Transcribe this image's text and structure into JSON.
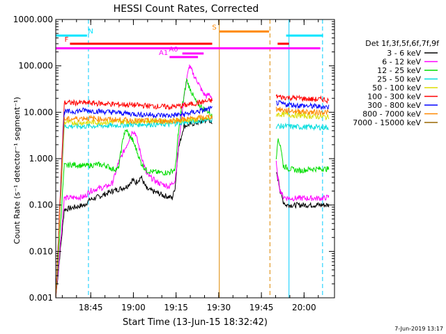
{
  "chart_data": {
    "type": "line",
    "title": "HESSI Count Rates, Corrected",
    "xlabel": "Start Time (13-Jun-15 18:32:42)",
    "ylabel": "Count Rate (s⁻¹ detector⁻¹ segment⁻¹)",
    "yscale": "log",
    "ylim": [
      0.001,
      1000
    ],
    "xlim_minutes": [
      0,
      98
    ],
    "x_unit": "minutes since 18:32:42",
    "x_ticks": [
      {
        "label": "18:45",
        "value": 12.3
      },
      {
        "label": "19:00",
        "value": 27.3
      },
      {
        "label": "19:15",
        "value": 42.3
      },
      {
        "label": "19:30",
        "value": 57.3
      },
      {
        "label": "19:45",
        "value": 72.3
      },
      {
        "label": "20:00",
        "value": 87.3
      }
    ],
    "y_ticks": [
      "1000.000",
      "100.000",
      "10.000",
      "1.000",
      "0.100",
      "0.010",
      "0.001"
    ],
    "legend_title": "Det 1f,3f,5f,6f,7f,9f",
    "legend_position": "right",
    "footer_date": "7-Jun-2019 13:17",
    "gaps_minutes": [
      [
        55.5,
        77.5
      ]
    ],
    "series": [
      {
        "name": "3 - 6 keV",
        "color": "#000000",
        "x": [
          0,
          3,
          10,
          12,
          15,
          20,
          25,
          27,
          28,
          30,
          32,
          36,
          38,
          40,
          41,
          42,
          43,
          45,
          47,
          50,
          52,
          54,
          55,
          77.5,
          78.5,
          79,
          80,
          81,
          82,
          84,
          86,
          88,
          90,
          92,
          94,
          96
        ],
        "y": [
          0.001,
          0.08,
          0.1,
          0.13,
          0.15,
          0.2,
          0.25,
          0.35,
          0.3,
          0.4,
          0.22,
          0.18,
          0.16,
          0.15,
          0.14,
          0.25,
          1.5,
          5,
          5.5,
          6,
          6.5,
          7,
          5,
          0.5,
          0.3,
          0.18,
          0.12,
          0.1,
          0.1,
          0.1,
          0.1,
          0.1,
          0.1,
          0.1,
          0.1,
          0.1
        ]
      },
      {
        "name": "6 - 12 keV",
        "color": "#ff00ff",
        "x": [
          0,
          3,
          10,
          12,
          14,
          18,
          20,
          22,
          25,
          27,
          28,
          30,
          32,
          36,
          40,
          42,
          43,
          44,
          45,
          46,
          47,
          48,
          49,
          50,
          51,
          52,
          53,
          54,
          55,
          77.5,
          78,
          79,
          80,
          82,
          86,
          90,
          94,
          96
        ],
        "y": [
          0.001,
          0.14,
          0.15,
          0.2,
          0.22,
          0.25,
          0.3,
          0.8,
          2,
          4,
          3.5,
          1.2,
          0.45,
          0.3,
          0.25,
          0.35,
          1.5,
          6,
          20,
          50,
          100,
          75,
          55,
          45,
          32,
          25,
          22,
          25,
          20,
          0.8,
          0.4,
          0.2,
          0.15,
          0.14,
          0.14,
          0.14,
          0.14,
          0.15
        ]
      },
      {
        "name": "12 - 25 keV",
        "color": "#00dd00",
        "x": [
          0,
          3,
          6,
          10,
          15,
          18,
          20,
          22,
          23,
          24,
          25,
          26,
          27,
          28,
          30,
          32,
          36,
          40,
          42,
          43,
          44,
          45,
          46,
          47,
          48,
          49,
          50,
          52,
          54,
          55,
          77.5,
          78,
          79,
          80,
          82,
          86,
          90,
          94,
          96
        ],
        "y": [
          0.001,
          0.7,
          0.75,
          0.7,
          0.75,
          0.7,
          0.6,
          0.6,
          1.5,
          3.5,
          4,
          3,
          2.5,
          1.8,
          0.8,
          0.55,
          0.5,
          0.5,
          0.6,
          3,
          10,
          20,
          50,
          35,
          25,
          18,
          15,
          12,
          10,
          8,
          1,
          2.5,
          2,
          0.7,
          0.6,
          0.55,
          0.6,
          0.6,
          0.6
        ]
      },
      {
        "name": "25 - 50 keV",
        "color": "#00dddd",
        "x": [
          0,
          3,
          10,
          20,
          30,
          40,
          42,
          45,
          50,
          55,
          77.5,
          80,
          86,
          90,
          94,
          96
        ],
        "y": [
          0.001,
          5,
          5,
          5.2,
          5.5,
          5.5,
          5.8,
          6,
          6.5,
          7,
          5,
          5,
          4.8,
          4.8,
          4.7,
          4.7
        ]
      },
      {
        "name": "50 - 100 keV",
        "color": "#dddd00",
        "x": [
          0,
          3,
          10,
          20,
          30,
          40,
          45,
          50,
          55,
          77.5,
          80,
          86,
          90,
          94,
          96
        ],
        "y": [
          0.001,
          6,
          6,
          6.2,
          6.5,
          6.5,
          6.8,
          7,
          7.5,
          9,
          9,
          8.5,
          8.2,
          8,
          7.8
        ]
      },
      {
        "name": "100 - 300 keV",
        "color": "#ff0000",
        "x": [
          0,
          3,
          10,
          20,
          30,
          40,
          45,
          50,
          55,
          77.5,
          80,
          86,
          90,
          94,
          96
        ],
        "y": [
          0.001,
          16,
          16,
          15,
          14,
          13,
          14,
          16,
          18,
          22,
          21,
          20,
          19,
          19,
          18
        ]
      },
      {
        "name": "300 - 800 keV",
        "color": "#0000ff",
        "x": [
          0,
          3,
          10,
          20,
          30,
          40,
          45,
          50,
          55,
          77.5,
          80,
          86,
          90,
          94,
          96
        ],
        "y": [
          0.001,
          10,
          11,
          10,
          9,
          8.5,
          9,
          10.5,
          12,
          16,
          15,
          14,
          13.5,
          13,
          13
        ]
      },
      {
        "name": "800 - 7000 keV",
        "color": "#ff8800",
        "x": [
          0,
          3,
          10,
          20,
          30,
          40,
          45,
          50,
          55,
          77.5,
          80,
          86,
          90,
          94,
          96
        ],
        "y": [
          0.001,
          7,
          7.5,
          7,
          6.5,
          6.5,
          7,
          7.5,
          8,
          12,
          11,
          10.5,
          10,
          10,
          10
        ]
      },
      {
        "name": "7000 - 15000 keV",
        "color": "#996600",
        "x": [
          0,
          3,
          10,
          20,
          30,
          40,
          50,
          55,
          77.5,
          86,
          96
        ],
        "y": [
          0.001,
          0.001,
          0.001,
          0.001,
          0.001,
          0.001,
          0.001,
          0.001,
          0.001,
          0.001,
          0.001
        ]
      }
    ],
    "flag_bars": [
      {
        "label": "N",
        "color": "#00e5ff",
        "y": 450,
        "segments": [
          [
            0,
            11
          ],
          [
            81,
            94
          ]
        ]
      },
      {
        "label": "S",
        "color": "#ff8800",
        "y": 550,
        "segments": [
          [
            57.5,
            75
          ]
        ]
      },
      {
        "label": "F",
        "color": "#ff0000",
        "y": 300,
        "segments": [
          [
            5,
            55
          ],
          [
            78,
            82
          ]
        ]
      },
      {
        "label": "A0",
        "color": "#ff00ff",
        "y": 185,
        "segments": [
          [
            44.5,
            52
          ]
        ]
      },
      {
        "label": "A1",
        "color": "#ff00ff",
        "y": 155,
        "segments": [
          [
            40,
            50
          ]
        ]
      },
      {
        "label": "",
        "color": "#ff00ff",
        "y": 240,
        "segments": [
          [
            0,
            93
          ]
        ]
      }
    ],
    "vlines": [
      {
        "x": 11.5,
        "color": "#00ccff",
        "style": "dashed"
      },
      {
        "x": 57.5,
        "color": "#dd8800",
        "style": "solid"
      },
      {
        "x": 75.3,
        "color": "#dd8800",
        "style": "dashed"
      },
      {
        "x": 82.0,
        "color": "#00ccff",
        "style": "solid"
      },
      {
        "x": 93.8,
        "color": "#00ccff",
        "style": "dashed"
      }
    ]
  }
}
